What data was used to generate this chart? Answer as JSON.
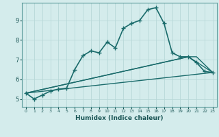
{
  "title": "",
  "xlabel": "Humidex (Indice chaleur)",
  "ylabel": "",
  "bg_color": "#d4ecec",
  "grid_color": "#b8d8d8",
  "line_color": "#1a6b6b",
  "xlim": [
    -0.5,
    23.5
  ],
  "ylim": [
    4.6,
    9.9
  ],
  "xticks": [
    0,
    1,
    2,
    3,
    4,
    5,
    6,
    7,
    8,
    9,
    10,
    11,
    12,
    13,
    14,
    15,
    16,
    17,
    18,
    19,
    20,
    21,
    22,
    23
  ],
  "yticks": [
    5,
    6,
    7,
    8,
    9
  ],
  "series": [
    {
      "x": [
        0,
        1,
        2,
        3,
        4,
        5,
        6,
        7,
        8,
        9,
        10,
        11,
        12,
        13,
        14,
        15,
        16,
        17,
        18,
        19,
        20,
        21,
        22,
        23
      ],
      "y": [
        5.3,
        5.0,
        5.2,
        5.4,
        5.5,
        5.55,
        6.5,
        7.2,
        7.45,
        7.35,
        7.9,
        7.6,
        8.6,
        8.85,
        9.0,
        9.55,
        9.65,
        8.85,
        7.35,
        7.15,
        7.15,
        6.85,
        6.4,
        6.35
      ],
      "marker": "+",
      "linewidth": 1.2,
      "markersize": 4
    },
    {
      "x": [
        0,
        23
      ],
      "y": [
        5.3,
        6.35
      ],
      "marker": null,
      "linewidth": 1.0
    },
    {
      "x": [
        0,
        20,
        23
      ],
      "y": [
        5.3,
        7.15,
        6.35
      ],
      "marker": null,
      "linewidth": 1.0
    },
    {
      "x": [
        0,
        20,
        21,
        23
      ],
      "y": [
        5.3,
        7.15,
        7.15,
        6.35
      ],
      "marker": null,
      "linewidth": 1.0
    }
  ]
}
